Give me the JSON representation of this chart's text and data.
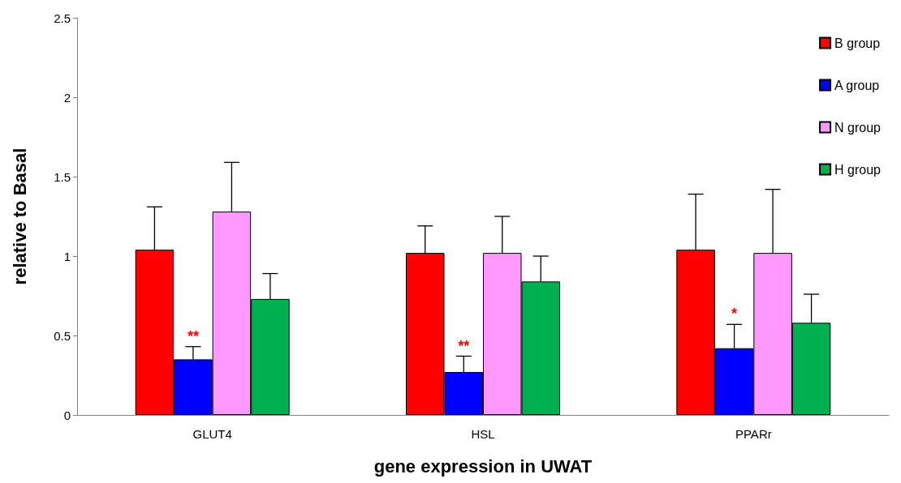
{
  "chart_data": {
    "type": "bar",
    "xlabel": "gene expression in UWAT",
    "ylabel": "relative to Basal",
    "categories": [
      "GLUT4",
      "HSL",
      "PPARr"
    ],
    "series": [
      {
        "name": "B group",
        "color": "#ff0000",
        "values": [
          1.04,
          1.02,
          1.04
        ],
        "errors": [
          [
            1.04,
            1.31
          ],
          [
            1.02,
            1.19
          ],
          [
            1.04,
            1.39
          ]
        ]
      },
      {
        "name": "A group",
        "color": "#0000ff",
        "values": [
          0.35,
          0.27,
          0.42
        ],
        "errors": [
          [
            0.35,
            0.43
          ],
          [
            0.27,
            0.37
          ],
          [
            0.42,
            0.57
          ]
        ]
      },
      {
        "name": "N group",
        "color": "#ff99ff",
        "values": [
          1.28,
          1.02,
          1.02
        ],
        "errors": [
          [
            1.28,
            1.59
          ],
          [
            1.02,
            1.25
          ],
          [
            1.02,
            1.42
          ]
        ]
      },
      {
        "name": "H group",
        "color": "#00b050",
        "values": [
          0.73,
          0.84,
          0.58
        ],
        "errors": [
          [
            0.73,
            0.89
          ],
          [
            0.84,
            1.0
          ],
          [
            0.58,
            0.76
          ]
        ]
      }
    ],
    "ylim": [
      0,
      2.5
    ],
    "yticks": [
      0,
      0.5,
      1,
      1.5,
      2,
      2.5
    ],
    "grid": false,
    "legend": "top right",
    "annotations": [
      {
        "text": "**",
        "x": "GLUT4",
        "y": 0.45
      },
      {
        "text": "**",
        "x": "HSL",
        "y": 0.39
      },
      {
        "text": "*",
        "x": "PPARr",
        "y": 0.59
      }
    ]
  }
}
